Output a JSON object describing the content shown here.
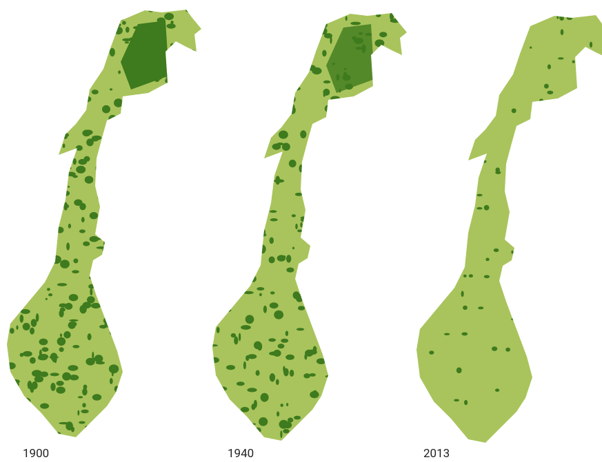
{
  "maps": [
    {
      "label": "1900"
    },
    {
      "label": "1940"
    },
    {
      "label": "2013"
    }
  ]
}
